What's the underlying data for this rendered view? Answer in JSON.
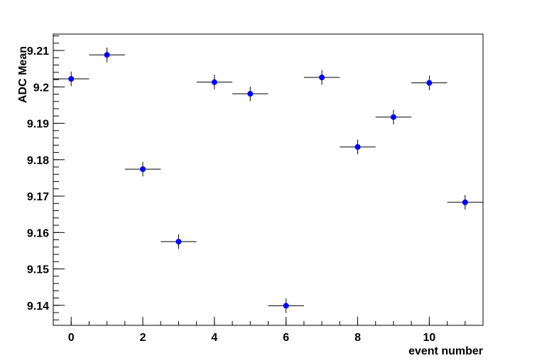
{
  "chart_data": {
    "type": "scatter",
    "xlabel": "event number",
    "ylabel": "ADC Mean",
    "xlim": [
      -0.5,
      11.5
    ],
    "ylim": [
      9.1345,
      9.2145
    ],
    "x_ticks": [
      0,
      2,
      4,
      6,
      8,
      10
    ],
    "x_tick_labels": [
      "0",
      "2",
      "4",
      "6",
      "8",
      "10"
    ],
    "y_ticks": [
      9.14,
      9.15,
      9.16,
      9.17,
      9.18,
      9.19,
      9.2,
      9.21
    ],
    "y_tick_labels": [
      "9.14",
      "9.15",
      "9.16",
      "9.17",
      "9.18",
      "9.19",
      "9.2",
      "9.21"
    ],
    "x_error": 0.5,
    "marker_color": "#0000ff",
    "errorbar_color": "#000000",
    "grid": false,
    "series": [
      {
        "x": [
          0,
          1,
          2,
          3,
          4,
          5,
          6,
          7,
          8,
          9,
          10,
          11
        ],
        "y": [
          9.2022,
          9.2088,
          9.1774,
          9.1575,
          9.2013,
          9.1981,
          9.1399,
          9.2026,
          9.1835,
          9.1917,
          9.2011,
          9.1683
        ],
        "y_err": [
          0.002,
          0.002,
          0.002,
          0.002,
          0.002,
          0.002,
          0.002,
          0.002,
          0.002,
          0.002,
          0.002,
          0.002
        ]
      }
    ]
  }
}
